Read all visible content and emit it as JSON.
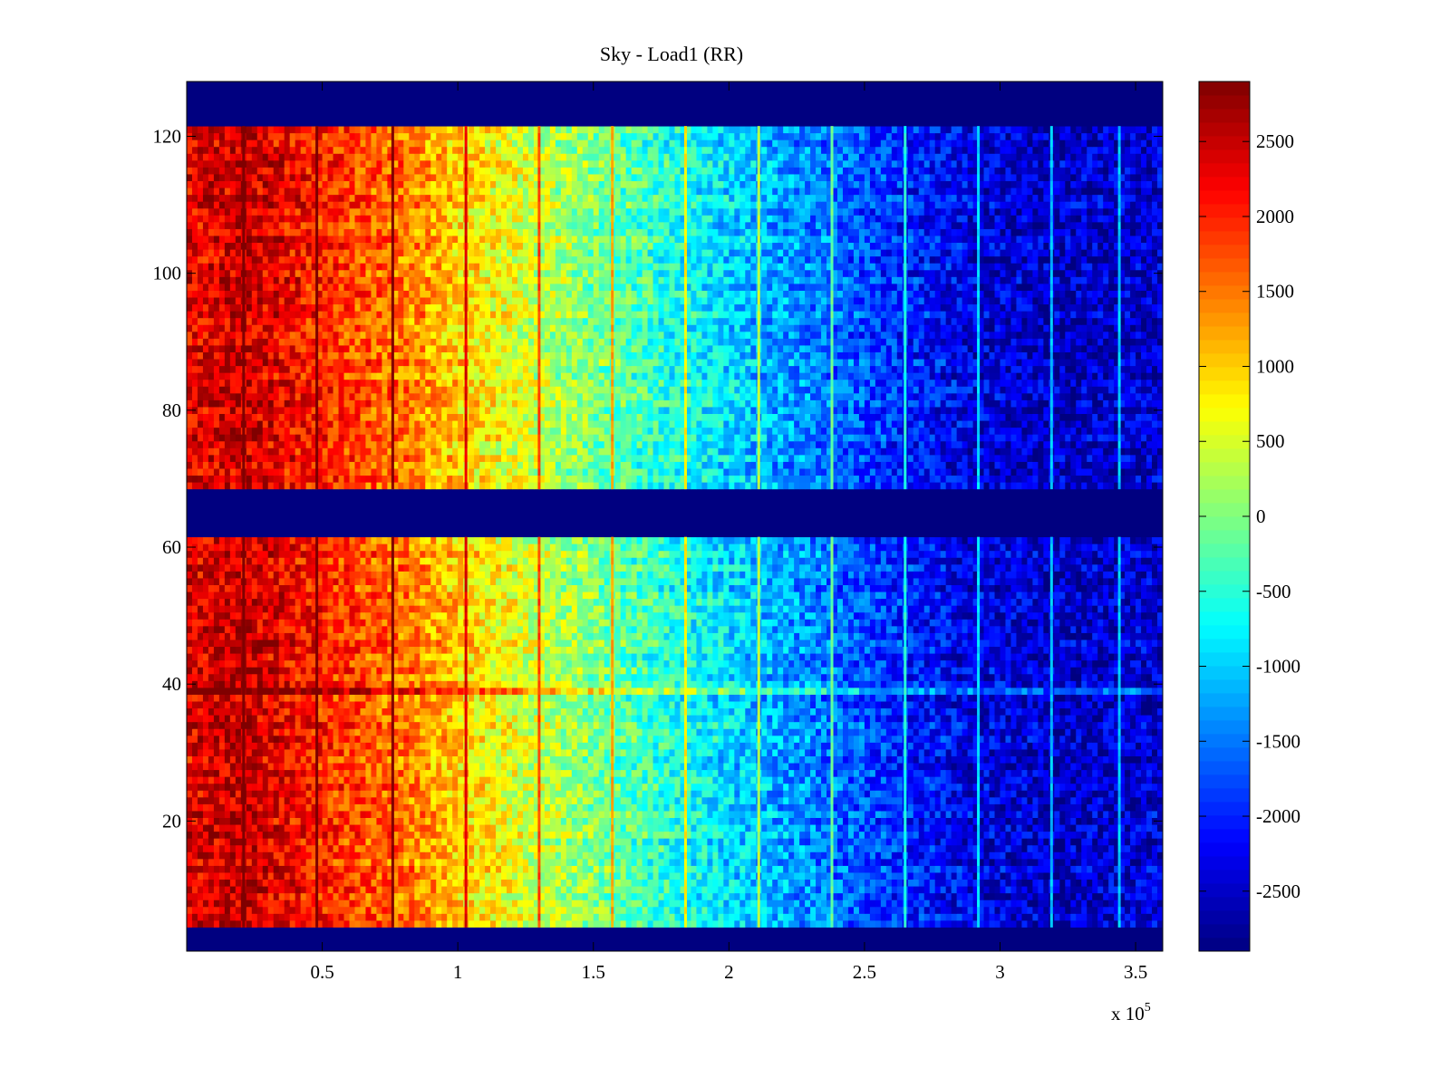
{
  "chart_data": {
    "type": "heatmap",
    "title": "Sky - Load1 (RR)",
    "xlabel": "",
    "ylabel": "",
    "x_multiplier_label": "x 10",
    "x_multiplier_exponent": "5",
    "xlim": [
      0,
      3.6
    ],
    "ylim": [
      1,
      128
    ],
    "x_ticks": [
      0.5,
      1,
      1.5,
      2,
      2.5,
      3,
      3.5
    ],
    "x_tick_labels": [
      "0.5",
      "1",
      "1.5",
      "2",
      "2.5",
      "3",
      "3.5"
    ],
    "y_ticks": [
      20,
      40,
      60,
      80,
      100,
      120
    ],
    "y_tick_labels": [
      "20",
      "40",
      "60",
      "80",
      "100",
      "120"
    ],
    "colorbar": {
      "clim": [
        -2900,
        2900
      ],
      "colormap": "jet",
      "ticks": [
        -2500,
        -2000,
        -1500,
        -1000,
        -500,
        0,
        500,
        1000,
        1500,
        2000,
        2500
      ],
      "tick_labels": [
        "-2500",
        "-2000",
        "-1500",
        "-1000",
        "-500",
        "0",
        "500",
        "1000",
        "1500",
        "2000",
        "2500"
      ]
    },
    "masked_row_bands": [
      {
        "from": 1,
        "to": 4,
        "value": -2900
      },
      {
        "from": 62,
        "to": 68,
        "value": -2900
      },
      {
        "from": 122,
        "to": 128,
        "value": -2900
      }
    ],
    "column_trend": {
      "x": [
        0,
        0.2,
        0.5,
        0.8,
        1.0,
        1.3,
        1.6,
        2.0,
        2.3,
        2.6,
        2.9,
        3.2,
        3.6
      ],
      "value": [
        2300,
        2500,
        2000,
        1500,
        1000,
        400,
        -200,
        -900,
        -1400,
        -1900,
        -2300,
        -2500,
        -2400
      ]
    },
    "spike_columns_x": [
      0.21,
      0.48,
      0.76,
      1.03,
      1.3,
      1.57,
      1.84,
      2.11,
      2.38,
      2.65,
      2.92,
      3.19,
      3.44
    ]
  }
}
